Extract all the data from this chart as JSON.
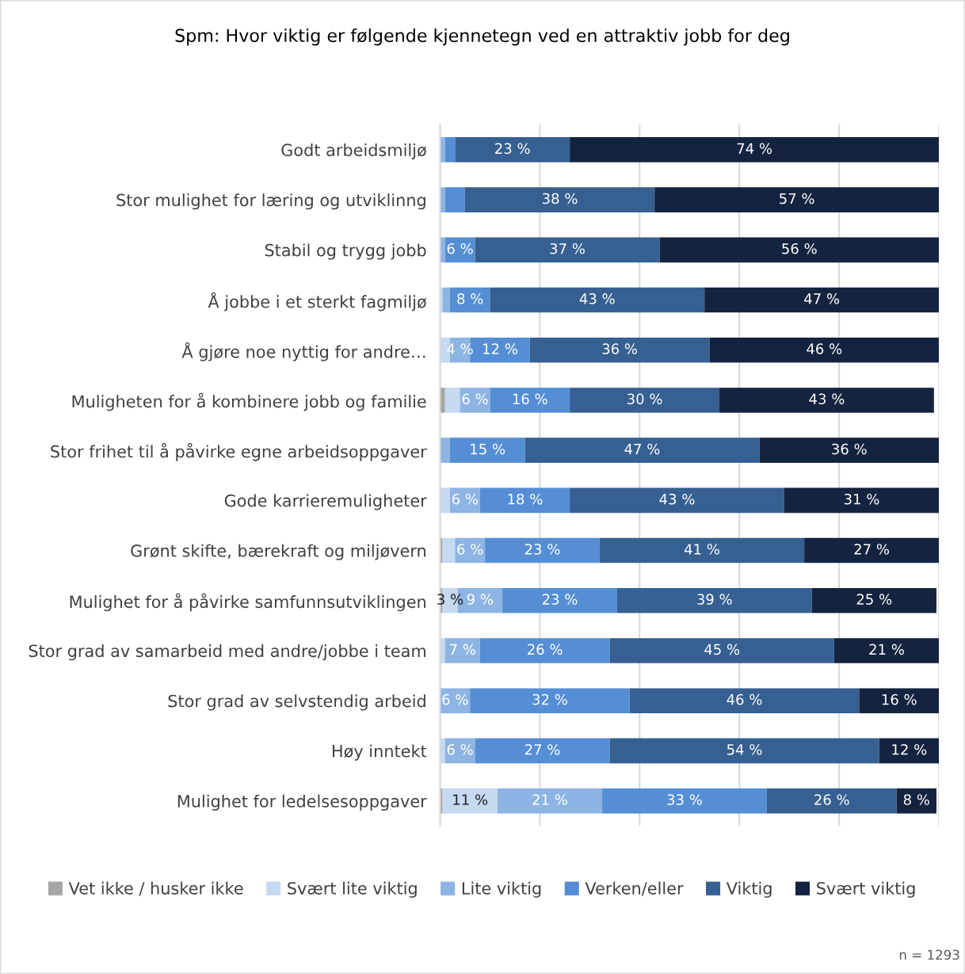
{
  "chart_data": {
    "type": "bar",
    "orientation": "horizontal",
    "stacked": true,
    "title": "Spm: Hvor viktig er følgende kjennetegn ved en attraktiv jobb for deg",
    "categories": [
      "Godt arbeidsmiljø",
      "Stor mulighet for læring og utviklinng",
      "Stabil og trygg jobb",
      "Å jobbe i et sterkt fagmiljø",
      "Å gjøre noe nyttig for andre…",
      "Muligheten for å kombinere jobb og familie",
      "Stor frihet til å påvirke egne arbeidsoppgaver",
      "Gode karrieremuligheter",
      "Grønt skifte, bærekraft og miljøvern",
      "Mulighet for å påvirke samfunnsutviklingen",
      "Stor grad av samarbeid med andre/jobbe i team",
      "Stor grad av selvstendig arbeid",
      "Høy inntekt",
      "Mulighet for ledelsesoppgaver"
    ],
    "series": [
      {
        "name": "Vet ikke / husker ikke",
        "color": "#a5a5a5",
        "values": [
          0,
          0,
          0,
          0,
          0,
          1,
          0,
          0,
          0.5,
          0.5,
          0,
          0,
          0,
          0.5
        ],
        "value_labels": [
          null,
          null,
          null,
          null,
          null,
          null,
          null,
          null,
          null,
          null,
          null,
          null,
          null,
          null
        ]
      },
      {
        "name": "Svært lite viktig",
        "color": "#c5d9f1",
        "values": [
          0,
          0,
          0,
          0.5,
          2,
          3,
          0,
          2,
          2.5,
          3,
          1,
          0,
          1,
          11
        ],
        "value_labels": [
          null,
          null,
          null,
          null,
          null,
          null,
          null,
          null,
          null,
          "3 %",
          null,
          null,
          null,
          "11 %"
        ]
      },
      {
        "name": "Lite viktig",
        "color": "#8db4e2",
        "values": [
          1,
          1,
          1,
          1.5,
          4,
          6,
          2,
          6,
          6,
          9,
          7,
          6,
          6,
          21
        ],
        "value_labels": [
          null,
          null,
          null,
          null,
          "4 %",
          "6 %",
          null,
          "6 %",
          "6 %",
          "9 %",
          "7 %",
          "6 %",
          "6 %",
          "21 %"
        ]
      },
      {
        "name": "Verken/eller",
        "color": "#558ed5",
        "values": [
          2,
          4,
          6,
          8,
          12,
          16,
          15,
          18,
          23,
          23,
          26,
          32,
          27,
          33
        ],
        "value_labels": [
          null,
          null,
          "6 %",
          "8 %",
          "12 %",
          "16 %",
          "15 %",
          "18 %",
          "23 %",
          "23 %",
          "26 %",
          "32 %",
          "27 %",
          "33 %"
        ]
      },
      {
        "name": "Viktig",
        "color": "#366092",
        "values": [
          23,
          38,
          37,
          43,
          36,
          30,
          47,
          43,
          41,
          39,
          45,
          46,
          54,
          26
        ],
        "value_labels": [
          "23 %",
          "38 %",
          "37 %",
          "43 %",
          "36 %",
          "30 %",
          "47 %",
          "43 %",
          "41 %",
          "39 %",
          "45 %",
          "46 %",
          "54 %",
          "26 %"
        ]
      },
      {
        "name": "Svært viktig",
        "color": "#14233f",
        "values": [
          74,
          57,
          56,
          47,
          46,
          43,
          36,
          31,
          27,
          25,
          21,
          16,
          12,
          8
        ],
        "value_labels": [
          "74 %",
          "57 %",
          "56 %",
          "47 %",
          "46 %",
          "43 %",
          "36 %",
          "31 %",
          "27 %",
          "25 %",
          "21 %",
          "16 %",
          "12 %",
          "8 %"
        ]
      }
    ],
    "xlim": [
      0,
      100
    ],
    "xticks": [
      {
        "value": 0,
        "label": null
      },
      {
        "value": 20,
        "label": null
      },
      {
        "value": 40,
        "label": null
      },
      {
        "value": 60,
        "label": null
      },
      {
        "value": 80,
        "label": null
      },
      {
        "value": 100,
        "label": null
      }
    ],
    "tick_labels": "y",
    "grid": "x",
    "legend": "bottom",
    "annotations": [
      "n = 1293"
    ]
  }
}
